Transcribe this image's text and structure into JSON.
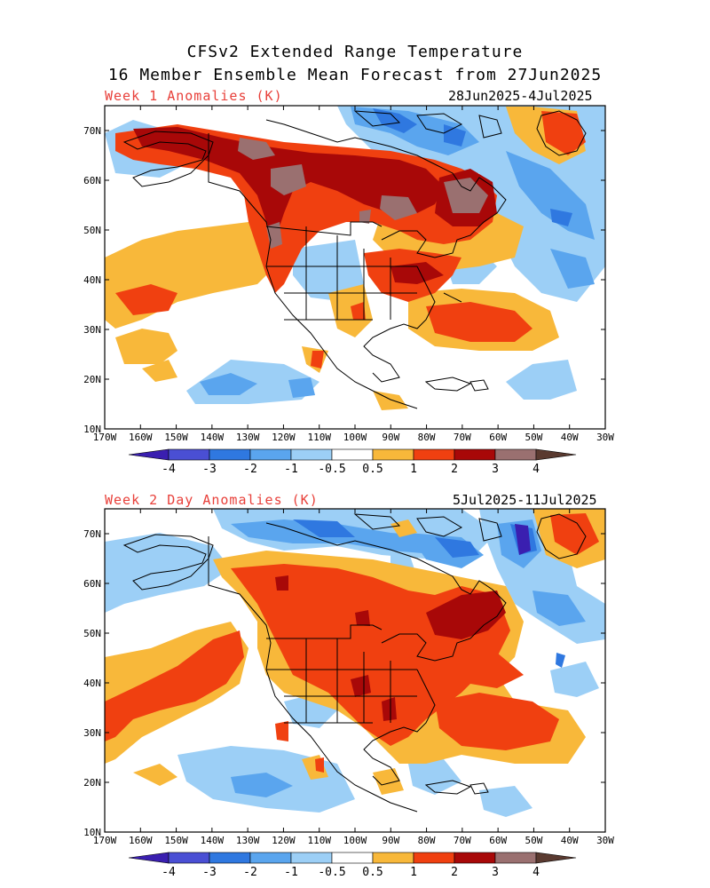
{
  "title_line1": "CFSv2 Extended Range Temperature",
  "title_line2": "16 Member Ensemble Mean Forecast from 27Jun2025",
  "colors": {
    "lt_-3": "#3a1fb0",
    "-3_-2": "#4a4fd4",
    "-2_-1": "#2f78e0",
    "-1_-0.5": "#5aa5ee",
    "-0.5_0": "#9ccff6",
    "0_0.5": "#ffffff",
    "0.5_1": "#f8b83a",
    "1_2": "#f04010",
    "2_3": "#a80808",
    "3_4": "#9a7070",
    "gt_4": "#5a3a30",
    "title_red": "#e8403a"
  },
  "panels": [
    {
      "id": "week1",
      "title": "Week 1 Anomalies (K)",
      "dates": "28Jun2025-4Jul2025"
    },
    {
      "id": "week2",
      "title": "Week 2 Day Anomalies (K)",
      "dates": "5Jul2025-11Jul2025"
    }
  ],
  "map_axes": {
    "lon_labels": [
      "170W",
      "160W",
      "150W",
      "140W",
      "130W",
      "120W",
      "110W",
      "100W",
      "90W",
      "80W",
      "70W",
      "60W",
      "50W",
      "40W",
      "30W"
    ],
    "lat_labels": [
      "70N",
      "60N",
      "50N",
      "40N",
      "30N",
      "20N",
      "10N"
    ]
  },
  "colorbar": {
    "labels": [
      "-4",
      "-3",
      "-2",
      "-1",
      "-0.5",
      "0.5",
      "1",
      "2",
      "3",
      "4"
    ],
    "unit": "K"
  }
}
